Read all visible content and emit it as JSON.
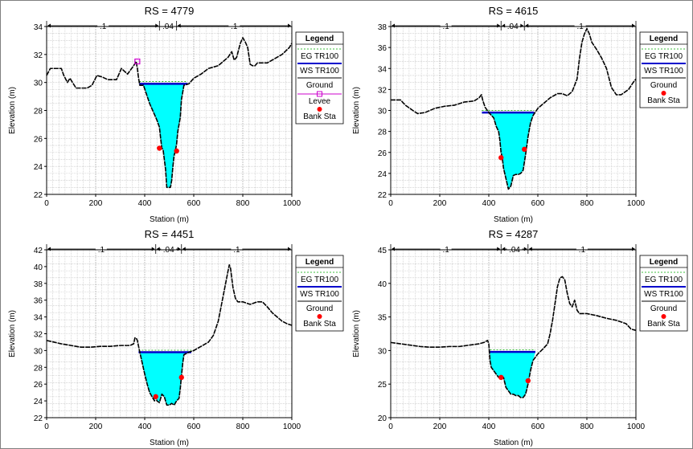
{
  "colors": {
    "ground": "#000000",
    "water_fill": "#00FFFF",
    "water_surface": "#0000CC",
    "energy_grade": "#00AA00",
    "levee": "#CC00CC",
    "bank_station": "#FF0000",
    "grid": "#BFBFBF"
  },
  "chart_data": [
    {
      "type": "area",
      "title": "RS = 4779",
      "xlabel": "Station (m)",
      "ylabel": "Elevation (m)",
      "xlim": [
        0,
        1000
      ],
      "ylim": [
        22,
        34
      ],
      "xticks": [
        0,
        200,
        400,
        600,
        800,
        1000
      ],
      "yticks": [
        22,
        24,
        26,
        28,
        30,
        32,
        34
      ],
      "grid": true,
      "legend_position": "right",
      "legend": {
        "title": "Legend",
        "items": [
          "EG TR100",
          "WS TR100",
          "Ground",
          "Levee",
          "Bank Sta"
        ]
      },
      "mannings_n": [
        {
          "label": ".1",
          "from": 0,
          "to": 460
        },
        {
          "label": ".04",
          "from": 460,
          "to": 530
        },
        {
          "label": ".1",
          "from": 530,
          "to": 1000
        }
      ],
      "ground": {
        "x": [
          0,
          15,
          30,
          60,
          70,
          85,
          95,
          120,
          140,
          165,
          185,
          205,
          225,
          250,
          285,
          305,
          330,
          355,
          365,
          370,
          375,
          380,
          395,
          420,
          450,
          460,
          465,
          470,
          475,
          480,
          485,
          490,
          495,
          500,
          505,
          510,
          515,
          520,
          525,
          530,
          535,
          545,
          550,
          560,
          580,
          600,
          630,
          660,
          700,
          740,
          755,
          765,
          775,
          790,
          800,
          810,
          820,
          830,
          840,
          850,
          860,
          900,
          930,
          960,
          990,
          1000
        ],
        "y": [
          30.5,
          31.0,
          31.0,
          31.0,
          30.5,
          30.0,
          30.3,
          29.6,
          29.6,
          29.6,
          29.8,
          30.5,
          30.4,
          30.2,
          30.2,
          31.0,
          30.6,
          31.2,
          31.5,
          31.0,
          30.3,
          29.8,
          29.8,
          28.5,
          27.3,
          26.8,
          26.0,
          25.3,
          25.2,
          24.5,
          23.8,
          22.5,
          22.5,
          22.5,
          22.5,
          23.0,
          24.0,
          24.8,
          25.1,
          25.6,
          26.5,
          27.5,
          28.8,
          29.8,
          29.9,
          30.3,
          30.6,
          31.0,
          31.2,
          31.8,
          32.2,
          31.6,
          31.8,
          32.8,
          33.2,
          32.9,
          32.5,
          31.3,
          31.2,
          31.2,
          31.4,
          31.4,
          31.7,
          32.0,
          32.5,
          32.8
        ]
      },
      "water_surface": {
        "elevation": 29.9,
        "from": 378,
        "to": 575
      },
      "energy_grade": {
        "elevation": 29.95
      },
      "bank_stations": [
        {
          "x": 460,
          "y": 25.3
        },
        {
          "x": 530,
          "y": 25.1
        }
      ],
      "levee": {
        "x": 370,
        "y": 31.5
      }
    },
    {
      "type": "area",
      "title": "RS = 4615",
      "xlabel": "Station (m)",
      "ylabel": "Elevation (m)",
      "xlim": [
        0,
        1000
      ],
      "ylim": [
        22,
        38
      ],
      "xticks": [
        0,
        200,
        400,
        600,
        800,
        1000
      ],
      "yticks": [
        22,
        24,
        26,
        28,
        30,
        32,
        34,
        36,
        38
      ],
      "grid": true,
      "legend_position": "right",
      "legend": {
        "title": "Legend",
        "items": [
          "EG TR100",
          "WS TR100",
          "Ground",
          "Bank Sta"
        ]
      },
      "mannings_n": [
        {
          "label": ".1",
          "from": 0,
          "to": 450
        },
        {
          "label": ".04",
          "from": 450,
          "to": 545
        },
        {
          "label": ".1",
          "from": 545,
          "to": 1000
        }
      ],
      "ground": {
        "x": [
          0,
          40,
          60,
          90,
          110,
          140,
          180,
          220,
          260,
          300,
          340,
          360,
          370,
          375,
          385,
          400,
          420,
          430,
          440,
          445,
          450,
          455,
          460,
          470,
          480,
          490,
          500,
          510,
          520,
          530,
          540,
          550,
          560,
          570,
          580,
          600,
          620,
          650,
          680,
          700,
          720,
          740,
          760,
          770,
          780,
          790,
          800,
          810,
          820,
          840,
          860,
          880,
          900,
          920,
          940,
          970,
          990,
          1000
        ],
        "y": [
          31.0,
          31.0,
          30.5,
          30.0,
          29.7,
          29.8,
          30.2,
          30.4,
          30.5,
          30.8,
          30.9,
          31.2,
          31.5,
          31.0,
          30.3,
          29.8,
          29.3,
          28.5,
          28.0,
          27.2,
          26.0,
          25.5,
          24.5,
          23.5,
          22.5,
          22.8,
          23.8,
          23.9,
          23.9,
          24.0,
          24.3,
          25.8,
          27.5,
          28.8,
          29.5,
          30.2,
          30.6,
          31.2,
          31.6,
          31.6,
          31.4,
          31.8,
          33.0,
          35.0,
          36.5,
          37.3,
          37.8,
          37.3,
          36.5,
          35.8,
          35.0,
          34.0,
          32.2,
          31.5,
          31.5,
          32.0,
          32.7,
          33.0
        ]
      },
      "water_surface": {
        "elevation": 29.8,
        "from": 372,
        "to": 585
      },
      "energy_grade": {
        "elevation": 29.85
      },
      "bank_stations": [
        {
          "x": 450,
          "y": 25.5
        },
        {
          "x": 545,
          "y": 26.3
        }
      ]
    },
    {
      "type": "area",
      "title": "RS = 4451",
      "xlabel": "Station (m)",
      "ylabel": "Elevation (m)",
      "xlim": [
        0,
        1000
      ],
      "ylim": [
        22,
        42
      ],
      "xticks": [
        0,
        200,
        400,
        600,
        800,
        1000
      ],
      "yticks": [
        22,
        24,
        26,
        28,
        30,
        32,
        34,
        36,
        38,
        40,
        42
      ],
      "grid": true,
      "legend_position": "right",
      "legend": {
        "title": "Legend",
        "items": [
          "EG TR100",
          "WS TR100",
          "Ground",
          "Bank Sta"
        ]
      },
      "mannings_n": [
        {
          "label": ".1",
          "from": 0,
          "to": 445
        },
        {
          "label": ".04",
          "from": 445,
          "to": 550
        },
        {
          "label": ".1",
          "from": 550,
          "to": 1000
        }
      ],
      "ground": {
        "x": [
          0,
          30,
          60,
          100,
          140,
          180,
          220,
          260,
          300,
          340,
          355,
          360,
          365,
          370,
          375,
          380,
          390,
          400,
          410,
          420,
          430,
          440,
          445,
          450,
          460,
          470,
          480,
          490,
          500,
          510,
          520,
          530,
          540,
          545,
          550,
          555,
          560,
          580,
          600,
          630,
          660,
          680,
          700,
          710,
          720,
          730,
          740,
          745,
          750,
          760,
          770,
          780,
          800,
          830,
          860,
          880,
          900,
          920,
          940,
          960,
          980,
          1000
        ],
        "y": [
          31.2,
          31.0,
          30.8,
          30.6,
          30.4,
          30.4,
          30.5,
          30.5,
          30.6,
          30.6,
          30.8,
          31.5,
          31.5,
          31.2,
          30.5,
          29.8,
          28.5,
          27.2,
          26.0,
          25.0,
          24.5,
          24.0,
          24.5,
          24.0,
          23.8,
          24.8,
          24.5,
          23.5,
          23.5,
          23.7,
          23.5,
          24.0,
          24.3,
          25.5,
          27.0,
          28.5,
          29.5,
          29.8,
          30.0,
          30.5,
          31.0,
          31.8,
          33.5,
          35.0,
          36.5,
          38.0,
          39.5,
          40.2,
          39.8,
          37.5,
          36.2,
          35.8,
          35.8,
          35.5,
          35.8,
          35.8,
          35.2,
          34.5,
          34.0,
          33.5,
          33.2,
          33.0
        ]
      },
      "water_surface": {
        "elevation": 29.8,
        "from": 375,
        "to": 590
      },
      "energy_grade": {
        "elevation": 29.85
      },
      "bank_stations": [
        {
          "x": 445,
          "y": 24.5
        },
        {
          "x": 550,
          "y": 26.8
        }
      ]
    },
    {
      "type": "area",
      "title": "RS = 4287",
      "xlabel": "Station (m)",
      "ylabel": "Elevation (m)",
      "xlim": [
        0,
        1000
      ],
      "ylim": [
        20,
        45
      ],
      "xticks": [
        0,
        200,
        400,
        600,
        800,
        1000
      ],
      "yticks": [
        20,
        25,
        30,
        35,
        40,
        45
      ],
      "grid": true,
      "legend_position": "right",
      "legend": {
        "title": "Legend",
        "items": [
          "EG TR100",
          "WS TR100",
          "Ground",
          "Bank Sta"
        ]
      },
      "mannings_n": [
        {
          "label": ".1",
          "from": 0,
          "to": 450
        },
        {
          "label": ".04",
          "from": 450,
          "to": 560
        },
        {
          "label": ".1",
          "from": 560,
          "to": 1000
        }
      ],
      "ground": {
        "x": [
          0,
          40,
          80,
          120,
          160,
          200,
          240,
          280,
          320,
          360,
          380,
          395,
          400,
          405,
          410,
          420,
          430,
          440,
          450,
          460,
          470,
          480,
          490,
          500,
          510,
          520,
          530,
          540,
          550,
          560,
          570,
          580,
          600,
          620,
          640,
          650,
          660,
          670,
          680,
          690,
          700,
          710,
          720,
          730,
          740,
          750,
          760,
          770,
          780,
          800,
          840,
          880,
          920,
          960,
          980,
          1000
        ],
        "y": [
          31.2,
          31.0,
          30.8,
          30.6,
          30.5,
          30.5,
          30.6,
          30.6,
          30.8,
          31.0,
          31.2,
          31.5,
          31.0,
          28.5,
          27.5,
          27.0,
          26.5,
          26.0,
          25.8,
          26.0,
          24.5,
          24.0,
          23.5,
          23.5,
          23.3,
          23.3,
          23.0,
          23.0,
          23.5,
          25.0,
          27.0,
          28.5,
          29.5,
          30.2,
          31.0,
          32.5,
          34.5,
          37.0,
          39.5,
          40.8,
          41.0,
          40.5,
          38.5,
          37.0,
          36.5,
          37.5,
          36.0,
          35.5,
          35.5,
          35.5,
          35.2,
          34.8,
          34.5,
          34.0,
          33.2,
          33.0
        ]
      },
      "water_surface": {
        "elevation": 29.8,
        "from": 405,
        "to": 590
      },
      "energy_grade": {
        "elevation": 29.85
      },
      "bank_stations": [
        {
          "x": 450,
          "y": 26.0
        },
        {
          "x": 560,
          "y": 25.5
        }
      ]
    }
  ]
}
